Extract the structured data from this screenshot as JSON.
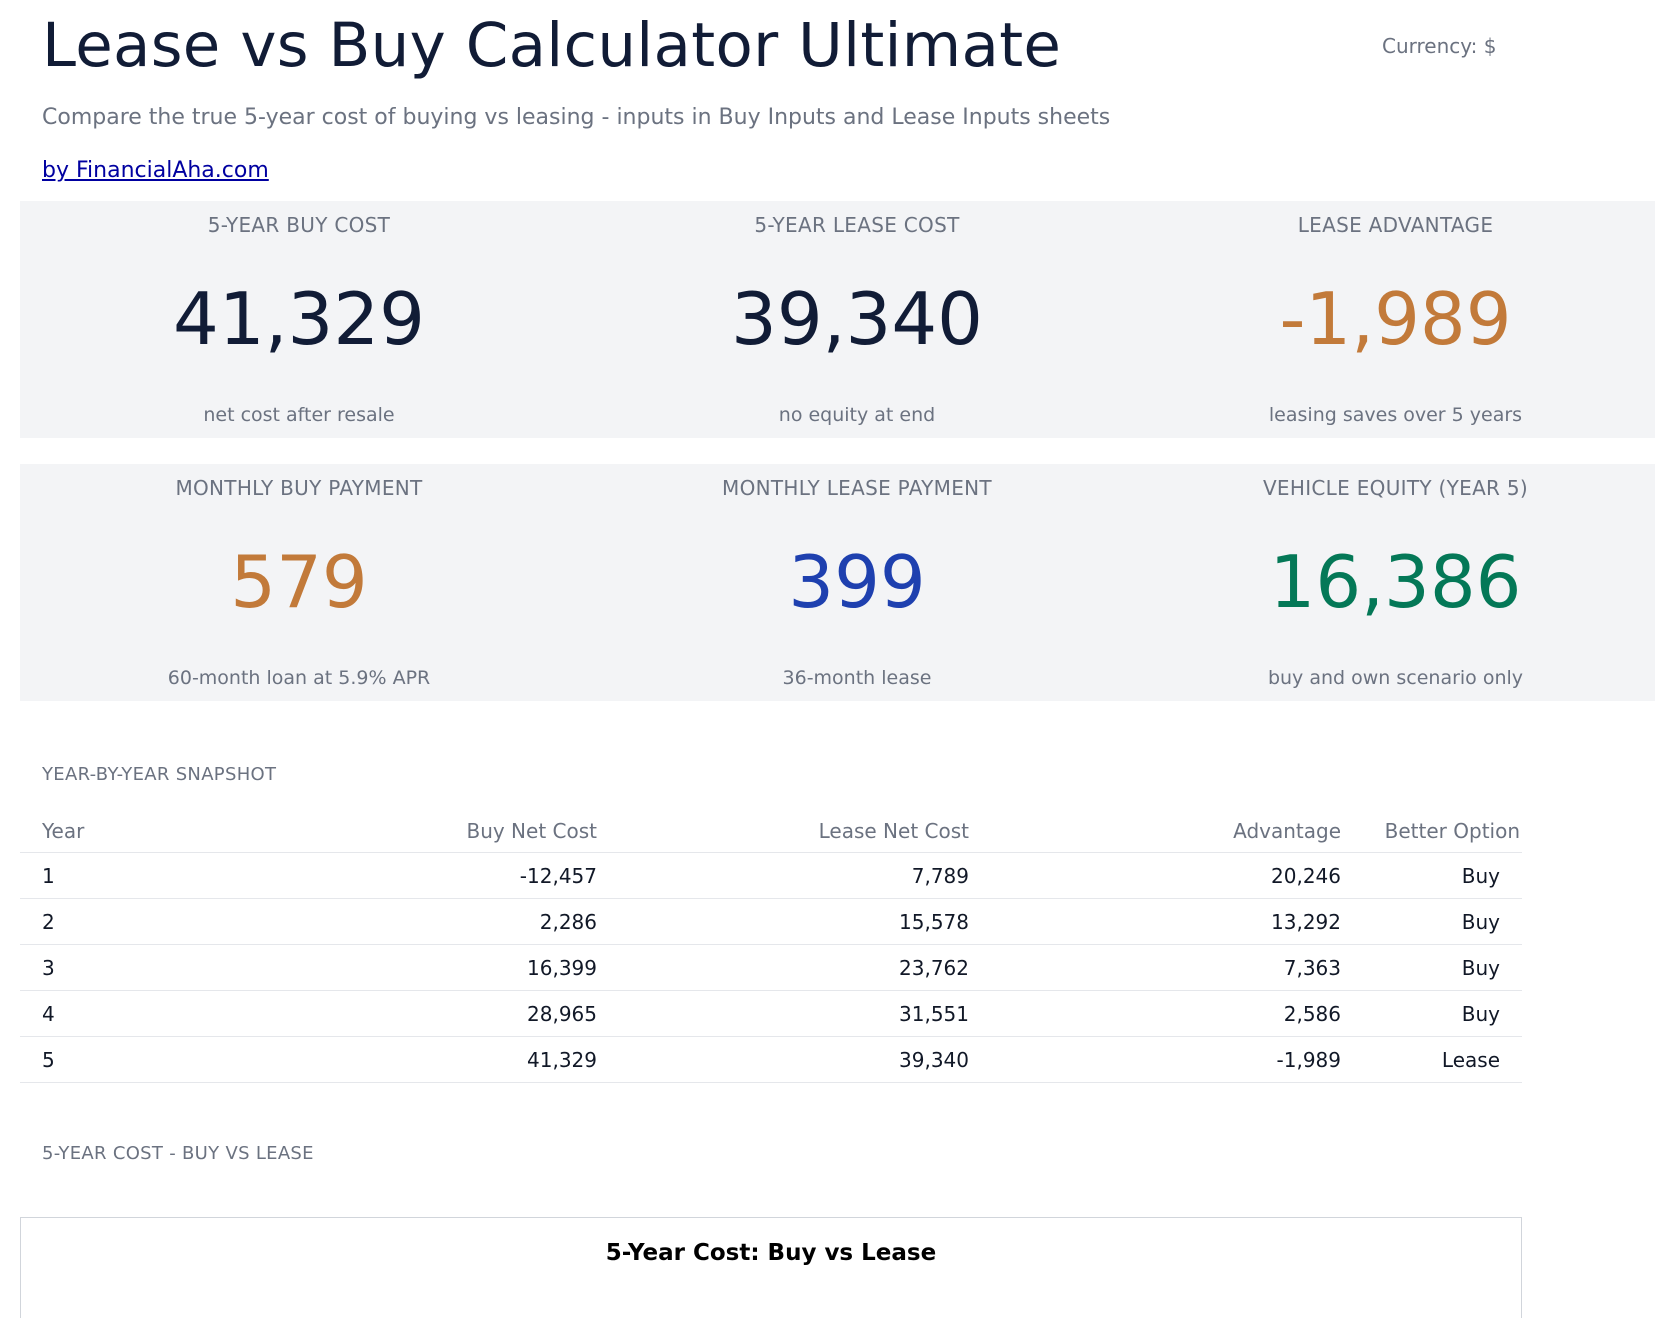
{
  "header": {
    "title": "Lease vs Buy Calculator Ultimate",
    "currency": "Currency: $",
    "subtitle": "Compare the true 5-year cost of buying vs leasing - inputs in Buy Inputs and Lease Inputs sheets",
    "byline": "by FinancialAha.com"
  },
  "colors": {
    "dark": "#111c36",
    "orange": "#c27a3a",
    "blue": "#1e40af",
    "green": "#047857",
    "red": "#b91c1c"
  },
  "kpis_row1": [
    {
      "label": "5-YEAR BUY COST",
      "value": "41,329",
      "note": "net cost after resale",
      "color": "dark"
    },
    {
      "label": "5-YEAR LEASE COST",
      "value": "39,340",
      "note": "no equity at end",
      "color": "dark"
    },
    {
      "label": "LEASE ADVANTAGE",
      "value": "-1,989",
      "note": "leasing saves over 5 years",
      "color": "orange"
    }
  ],
  "kpis_row2": [
    {
      "label": "MONTHLY BUY PAYMENT",
      "value": "579",
      "note": "60-month loan at 5.9% APR",
      "color": "orange"
    },
    {
      "label": "MONTHLY LEASE PAYMENT",
      "value": "399",
      "note": "36-month lease",
      "color": "blue"
    },
    {
      "label": "VEHICLE EQUITY (YEAR 5)",
      "value": "16,386",
      "note": "buy and own scenario only",
      "color": "green"
    }
  ],
  "snapshot": {
    "title": "YEAR-BY-YEAR SNAPSHOT",
    "columns": [
      "Year",
      "Buy Net Cost",
      "Lease Net Cost",
      "Advantage",
      "Better Option"
    ],
    "rows": [
      {
        "year": "1",
        "buy": "-12,457",
        "lease": "7,789",
        "advantage": "20,246",
        "sign": "pos",
        "better": "Buy"
      },
      {
        "year": "2",
        "buy": "2,286",
        "lease": "15,578",
        "advantage": "13,292",
        "sign": "pos",
        "better": "Buy"
      },
      {
        "year": "3",
        "buy": "16,399",
        "lease": "23,762",
        "advantage": "7,363",
        "sign": "pos",
        "better": "Buy"
      },
      {
        "year": "4",
        "buy": "28,965",
        "lease": "31,551",
        "advantage": "2,586",
        "sign": "pos",
        "better": "Buy"
      },
      {
        "year": "5",
        "buy": "41,329",
        "lease": "39,340",
        "advantage": "-1,989",
        "sign": "neg",
        "better": "Lease"
      }
    ]
  },
  "chart_section": {
    "title": "5-YEAR COST - BUY VS LEASE",
    "chart_title": "5-Year Cost: Buy vs Lease"
  }
}
